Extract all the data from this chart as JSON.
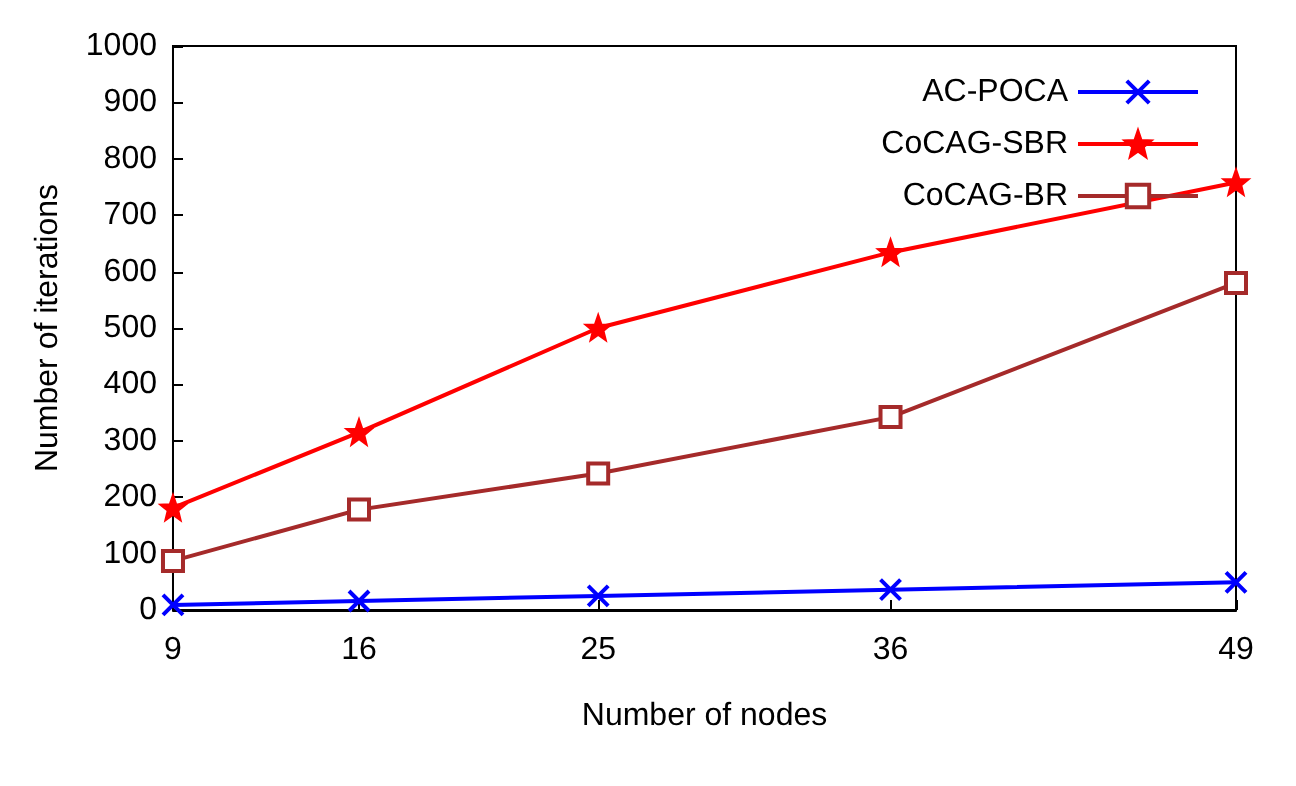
{
  "chart_data": {
    "type": "line",
    "xlabel": "Number of nodes",
    "ylabel": "Number of iterations",
    "x": [
      9,
      16,
      25,
      36,
      49
    ],
    "xlim": [
      9,
      49
    ],
    "xticks": [
      9,
      16,
      25,
      36,
      49
    ],
    "ylim": [
      0,
      1000
    ],
    "yticks": [
      0,
      100,
      200,
      300,
      400,
      500,
      600,
      700,
      800,
      900,
      1000
    ],
    "legend": "top right",
    "series": [
      {
        "name": "AC-POCA",
        "color": "#0000ff",
        "marker": "cross",
        "values": [
          9,
          16,
          25,
          36,
          49
        ]
      },
      {
        "name": "CoCAG-SBR",
        "color": "#ff0000",
        "marker": "star",
        "values": [
          181,
          315,
          500,
          634,
          758
        ]
      },
      {
        "name": "CoCAG-BR",
        "color": "#a52a2a",
        "marker": "square",
        "values": [
          87,
          178,
          242,
          342,
          580
        ]
      }
    ]
  }
}
